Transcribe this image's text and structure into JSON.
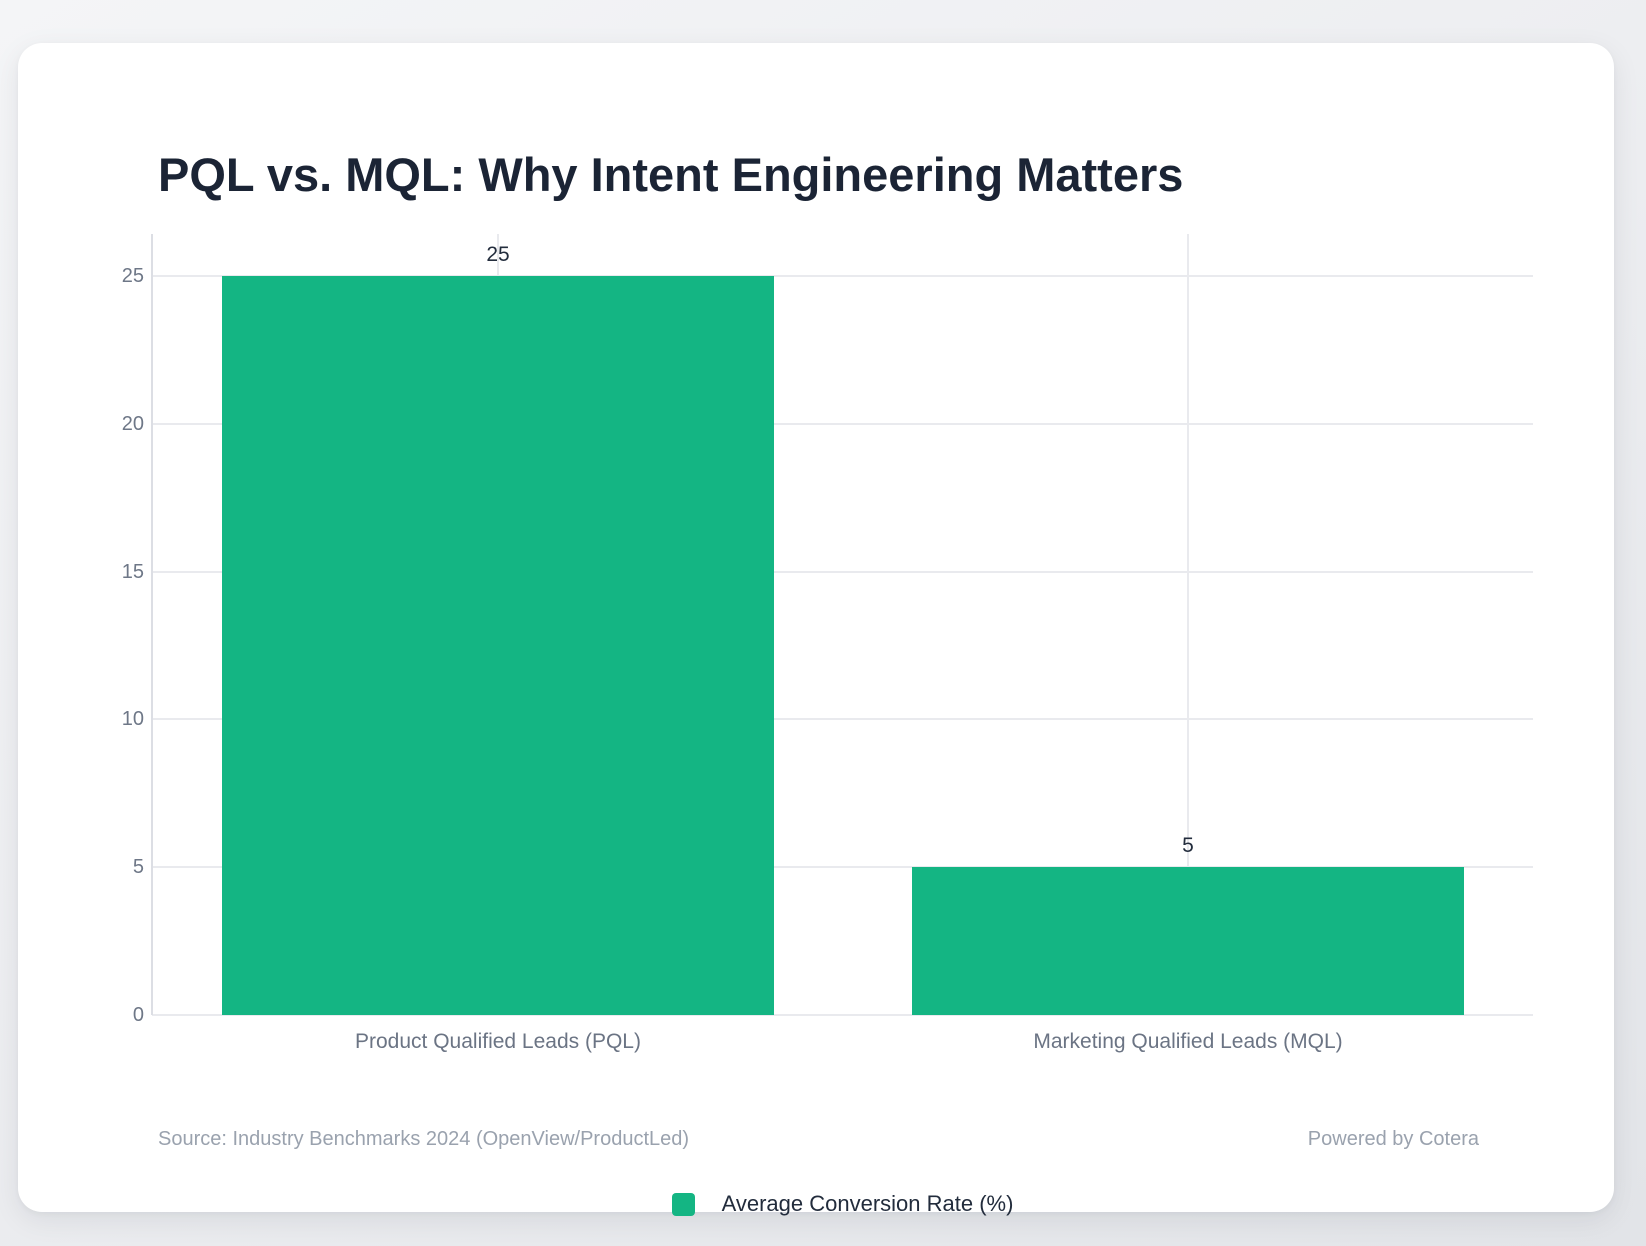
{
  "chart_data": {
    "type": "bar",
    "title": "PQL vs. MQL: Why Intent Engineering Matters",
    "categories": [
      "Product Qualified Leads (PQL)",
      "Marketing Qualified Leads (MQL)"
    ],
    "series": [
      {
        "name": "Average Conversion Rate (%)",
        "values": [
          25,
          5
        ]
      }
    ],
    "value_labels": [
      "25",
      "5"
    ],
    "xlabel": "",
    "ylabel": "",
    "ylim": [
      0,
      25
    ],
    "yticks": [
      0,
      5,
      10,
      15,
      20,
      25
    ],
    "grid": true,
    "legend_position": "bottom"
  },
  "footer": {
    "source": "Source: Industry Benchmarks 2024 (OpenView/ProductLed)",
    "powered_by": "Powered by Cotera"
  },
  "colors": {
    "bar": "#14b583",
    "gridline": "#e9eaee",
    "axis_line": "#dcdee4",
    "title_text": "#1b2435",
    "tick_text": "#6e7787",
    "category_text": "#6b7484",
    "muted_text": "#9aa2ae",
    "legend_text": "#222c3c",
    "card_bg": "#ffffff"
  }
}
